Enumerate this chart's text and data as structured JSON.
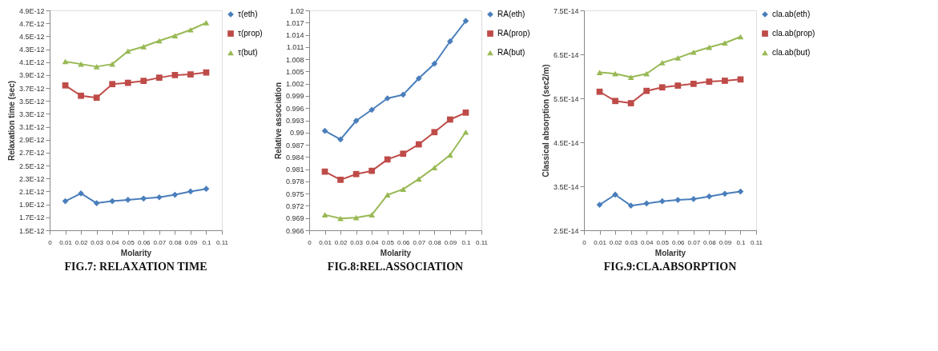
{
  "chart_data": [
    {
      "type": "line",
      "title": "FIG.7: RELAXATION TIME",
      "xlabel": "Molarity",
      "ylabel": "Relaxation time (sec)",
      "x": [
        0.01,
        0.02,
        0.03,
        0.04,
        0.05,
        0.06,
        0.07,
        0.08,
        0.09,
        0.1
      ],
      "xlim": [
        0,
        0.11
      ],
      "xticks": [
        0,
        0.01,
        0.02,
        0.03,
        0.04,
        0.05,
        0.06,
        0.07,
        0.08,
        0.09,
        0.1,
        0.11
      ],
      "ylim": [
        1.5e-12,
        4.9e-12
      ],
      "yticks": [
        {
          "value": 1.5e-12,
          "label": "1.5E-12"
        },
        {
          "value": 1.7e-12,
          "label": "1.7E-12"
        },
        {
          "value": 1.9e-12,
          "label": "1.9E-12"
        },
        {
          "value": 2.1e-12,
          "label": "2.1E-12"
        },
        {
          "value": 2.3e-12,
          "label": "2.3E-12"
        },
        {
          "value": 2.5e-12,
          "label": "2.5E-12"
        },
        {
          "value": 2.7e-12,
          "label": "2.7E-12"
        },
        {
          "value": 2.9e-12,
          "label": "2.9E-12"
        },
        {
          "value": 3.1e-12,
          "label": "3.1E-12"
        },
        {
          "value": 3.3e-12,
          "label": "3.3E-12"
        },
        {
          "value": 3.5e-12,
          "label": "3.5E-12"
        },
        {
          "value": 3.7e-12,
          "label": "3.7E-12"
        },
        {
          "value": 3.9e-12,
          "label": "3.9E-12"
        },
        {
          "value": 4.1e-12,
          "label": "4.1E-12"
        },
        {
          "value": 4.3e-12,
          "label": "4.3E-12"
        },
        {
          "value": 4.5e-12,
          "label": "4.5E-12"
        },
        {
          "value": 4.7e-12,
          "label": "4.7E-12"
        },
        {
          "value": 4.9e-12,
          "label": "4.9E-12"
        }
      ],
      "grid": false,
      "legend": "right",
      "series": [
        {
          "name": "τ(eth)",
          "color": "#4a7ebb",
          "marker": "diamond",
          "values": [
            1.95e-12,
            2.07e-12,
            1.92e-12,
            1.95e-12,
            1.97e-12,
            1.99e-12,
            2.01e-12,
            2.05e-12,
            2.1e-12,
            2.14e-12
          ]
        },
        {
          "name": "τ(prop)",
          "color": "#be4b48",
          "marker": "square",
          "values": [
            3.74e-12,
            3.58e-12,
            3.55e-12,
            3.76e-12,
            3.78e-12,
            3.81e-12,
            3.86e-12,
            3.9e-12,
            3.91e-12,
            3.94e-12
          ]
        },
        {
          "name": "τ(but)",
          "color": "#98b954",
          "marker": "triangle",
          "values": [
            4.11e-12,
            4.07e-12,
            4.03e-12,
            4.07e-12,
            4.27e-12,
            4.34e-12,
            4.43e-12,
            4.51e-12,
            4.6e-12,
            4.71e-12
          ]
        }
      ]
    },
    {
      "type": "line",
      "title": "FIG.8:REL.ASSOCIATION",
      "xlabel": "Molarity",
      "ylabel": "Relative association",
      "x": [
        0.01,
        0.02,
        0.03,
        0.04,
        0.05,
        0.06,
        0.07,
        0.08,
        0.09,
        0.1
      ],
      "xlim": [
        0,
        0.11
      ],
      "xticks": [
        0,
        0.01,
        0.02,
        0.03,
        0.04,
        0.05,
        0.06,
        0.07,
        0.08,
        0.09,
        0.1,
        0.11
      ],
      "ylim": [
        0.966,
        1.02
      ],
      "yticks": [
        0.966,
        0.969,
        0.972,
        0.975,
        0.978,
        0.981,
        0.984,
        0.987,
        0.99,
        0.993,
        0.996,
        0.999,
        1.002,
        1.005,
        1.008,
        1.011,
        1.014,
        1.017,
        1.02
      ],
      "grid": false,
      "legend": "right",
      "series": [
        {
          "name": "RA(eth)",
          "color": "#4a7ebb",
          "marker": "diamond",
          "values": [
            0.9904,
            0.9883,
            0.9929,
            0.9956,
            0.9984,
            0.9993,
            1.0033,
            1.0069,
            1.0124,
            1.0174
          ]
        },
        {
          "name": "RA(prop)",
          "color": "#be4b48",
          "marker": "square",
          "values": [
            0.9804,
            0.9784,
            0.9798,
            0.9806,
            0.9834,
            0.9848,
            0.9871,
            0.9901,
            0.9932,
            0.9949
          ]
        },
        {
          "name": "RA(but)",
          "color": "#98b954",
          "marker": "triangle",
          "values": [
            0.9698,
            0.9689,
            0.9691,
            0.9698,
            0.9747,
            0.9761,
            0.9786,
            0.9814,
            0.9845,
            0.9901
          ]
        }
      ]
    },
    {
      "type": "line",
      "title": "FIG.9:CLA.ABSORPTION",
      "xlabel": "Molarity",
      "ylabel": "Classical absorption (sec2/m)",
      "x": [
        0.01,
        0.02,
        0.03,
        0.04,
        0.05,
        0.06,
        0.07,
        0.08,
        0.09,
        0.1
      ],
      "xlim": [
        0,
        0.11
      ],
      "xticks": [
        0,
        0.01,
        0.02,
        0.03,
        0.04,
        0.05,
        0.06,
        0.07,
        0.08,
        0.09,
        0.1,
        0.11
      ],
      "ylim": [
        2.5e-14,
        7.5e-14
      ],
      "yticks": [
        {
          "value": 2.5e-14,
          "label": "2.5E-14"
        },
        {
          "value": 3.5e-14,
          "label": "3.5E-14"
        },
        {
          "value": 4.5e-14,
          "label": "4.5E-14"
        },
        {
          "value": 5.5e-14,
          "label": "5.5E-14"
        },
        {
          "value": 6.5e-14,
          "label": "6.5E-14"
        },
        {
          "value": 7.5e-14,
          "label": "7.5E-14"
        }
      ],
      "grid": false,
      "legend": "right",
      "series": [
        {
          "name": "cla.ab(eth)",
          "color": "#4a7ebb",
          "marker": "diamond",
          "values": [
            3.08e-14,
            3.31e-14,
            3.06e-14,
            3.11e-14,
            3.16e-14,
            3.19e-14,
            3.21e-14,
            3.27e-14,
            3.33e-14,
            3.38e-14
          ]
        },
        {
          "name": "cla.ab(prop)",
          "color": "#be4b48",
          "marker": "square",
          "values": [
            5.65e-14,
            5.44e-14,
            5.39e-14,
            5.67e-14,
            5.75e-14,
            5.79e-14,
            5.83e-14,
            5.88e-14,
            5.9e-14,
            5.93e-14
          ]
        },
        {
          "name": "cla.ab(but)",
          "color": "#98b954",
          "marker": "triangle",
          "values": [
            6.09e-14,
            6.06e-14,
            5.98e-14,
            6.06e-14,
            6.31e-14,
            6.42e-14,
            6.55e-14,
            6.66e-14,
            6.76e-14,
            6.9e-14
          ]
        }
      ]
    }
  ]
}
